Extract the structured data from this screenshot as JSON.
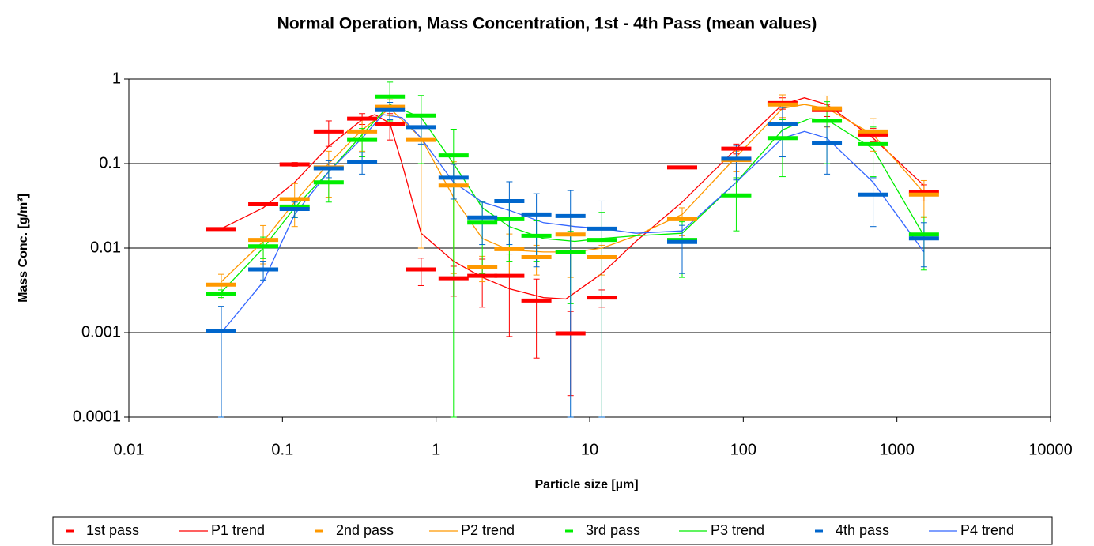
{
  "chart_data": {
    "type": "scatter",
    "title": "Normal Operation, Mass Concentration, 1st - 4th Pass (mean values)",
    "x_label": "Particle size [µm]",
    "y_label": "Mass Conc. [g/m³]",
    "log_x": true,
    "log_y": true,
    "grid": true,
    "legend": "bottom",
    "xlim": [
      0.01,
      10000
    ],
    "xticks": [
      0.01,
      0.1,
      1,
      10,
      100,
      1000,
      10000
    ],
    "ylim": [
      0.0001,
      1
    ],
    "yticks": [
      0.0001,
      0.001,
      0.01,
      0.1,
      1
    ],
    "x": [
      0.04,
      0.075,
      0.12,
      0.2,
      0.33,
      0.5,
      0.8,
      1.3,
      2,
      3,
      4.5,
      7.5,
      12,
      40,
      90,
      180,
      350,
      700,
      1500
    ],
    "series": [
      {
        "name": "1st pass",
        "color": "#ff0000",
        "values": [
          0.0168,
          0.033,
          0.098,
          0.24,
          0.34,
          0.29,
          0.0056,
          0.0044,
          0.0047,
          0.0047,
          0.0024,
          0.00098,
          0.0026,
          0.09,
          0.15,
          0.52,
          0.43,
          0.22,
          0.046
        ],
        "errors": [
          0,
          0,
          0.005,
          0.08,
          0.05,
          0.1,
          0.002,
          0.0017,
          0.0027,
          0.0038,
          0.0019,
          0.0008,
          0.0006,
          0,
          0.02,
          0.08,
          0.07,
          0.04,
          0.01
        ]
      },
      {
        "name": "2nd pass",
        "color": "#ff9900",
        "values": [
          0.0037,
          0.0125,
          0.038,
          0.09,
          0.24,
          0.47,
          0.19,
          0.055,
          0.006,
          0.0097,
          0.0078,
          0.0145,
          0.0078,
          0.022,
          0.11,
          0.5,
          0.45,
          0.24,
          0.043
        ],
        "errors": [
          0.0012,
          0.006,
          0.02,
          0.05,
          0.1,
          0.1,
          0.18,
          0.05,
          0.002,
          0.005,
          0.003,
          0.01,
          0.003,
          0.008,
          0.03,
          0.15,
          0.18,
          0.1,
          0.02
        ]
      },
      {
        "name": "3rd pass",
        "color": "#00ee00",
        "values": [
          0.0029,
          0.0105,
          0.031,
          0.06,
          0.19,
          0.62,
          0.37,
          0.125,
          0.02,
          0.022,
          0.014,
          0.009,
          0.0125,
          0.0125,
          0.042,
          0.2,
          0.32,
          0.17,
          0.0145
        ],
        "errors": [
          0.0003,
          0.003,
          0.008,
          0.025,
          0.07,
          0.3,
          0.27,
          0.13,
          0.015,
          0.015,
          0.007,
          0.0068,
          0.014,
          0.008,
          0.026,
          0.13,
          0.22,
          0.1,
          0.009
        ]
      },
      {
        "name": "4th pass",
        "color": "#0066cc",
        "values": [
          0.00105,
          0.0056,
          0.029,
          0.088,
          0.105,
          0.43,
          0.27,
          0.068,
          0.023,
          0.036,
          0.025,
          0.024,
          0.017,
          0.0118,
          0.114,
          0.29,
          0.175,
          0.043,
          0.013
        ],
        "errors": [
          0.001,
          0.0014,
          0.006,
          0.02,
          0.03,
          0.1,
          0.1,
          0.03,
          0.012,
          0.025,
          0.019,
          0.024,
          0.019,
          0.0068,
          0.05,
          0.17,
          0.1,
          0.025,
          0.007
        ]
      }
    ],
    "trends": [
      {
        "name": "P1 trend",
        "color": "#ff0000",
        "x": [
          0.04,
          0.075,
          0.12,
          0.2,
          0.33,
          0.4,
          0.5,
          0.6,
          0.8,
          1.3,
          2,
          3,
          5,
          7,
          12,
          20,
          40,
          90,
          180,
          250,
          350,
          700,
          1500
        ],
        "y": [
          0.017,
          0.03,
          0.06,
          0.16,
          0.33,
          0.38,
          0.3,
          0.1,
          0.015,
          0.007,
          0.0045,
          0.0033,
          0.0026,
          0.0025,
          0.005,
          0.012,
          0.035,
          0.15,
          0.5,
          0.6,
          0.5,
          0.2,
          0.055
        ]
      },
      {
        "name": "P2 trend",
        "color": "#ff9900",
        "x": [
          0.04,
          0.075,
          0.12,
          0.2,
          0.33,
          0.5,
          0.8,
          1.3,
          2,
          3,
          5,
          8,
          12,
          20,
          40,
          90,
          180,
          250,
          350,
          700,
          1500
        ],
        "y": [
          0.004,
          0.012,
          0.035,
          0.1,
          0.25,
          0.45,
          0.2,
          0.04,
          0.013,
          0.0095,
          0.009,
          0.009,
          0.01,
          0.014,
          0.025,
          0.12,
          0.45,
          0.5,
          0.45,
          0.22,
          0.045
        ]
      },
      {
        "name": "P3 trend",
        "color": "#00ee00",
        "x": [
          0.04,
          0.075,
          0.12,
          0.2,
          0.33,
          0.5,
          0.8,
          1.3,
          2,
          3,
          5,
          8,
          12,
          20,
          40,
          90,
          180,
          270,
          350,
          700,
          1500
        ],
        "y": [
          0.003,
          0.01,
          0.03,
          0.08,
          0.22,
          0.5,
          0.35,
          0.1,
          0.03,
          0.018,
          0.013,
          0.012,
          0.013,
          0.014,
          0.015,
          0.06,
          0.25,
          0.34,
          0.33,
          0.15,
          0.014
        ]
      },
      {
        "name": "P4 trend",
        "color": "#3366ff",
        "x": [
          0.04,
          0.075,
          0.12,
          0.2,
          0.33,
          0.45,
          0.6,
          0.8,
          1.3,
          2,
          3,
          5,
          8,
          12,
          20,
          40,
          90,
          180,
          250,
          350,
          700,
          1500
        ],
        "y": [
          0.001,
          0.004,
          0.025,
          0.08,
          0.2,
          0.38,
          0.35,
          0.2,
          0.06,
          0.035,
          0.028,
          0.02,
          0.018,
          0.017,
          0.015,
          0.016,
          0.06,
          0.2,
          0.24,
          0.2,
          0.06,
          0.009
        ]
      }
    ]
  }
}
